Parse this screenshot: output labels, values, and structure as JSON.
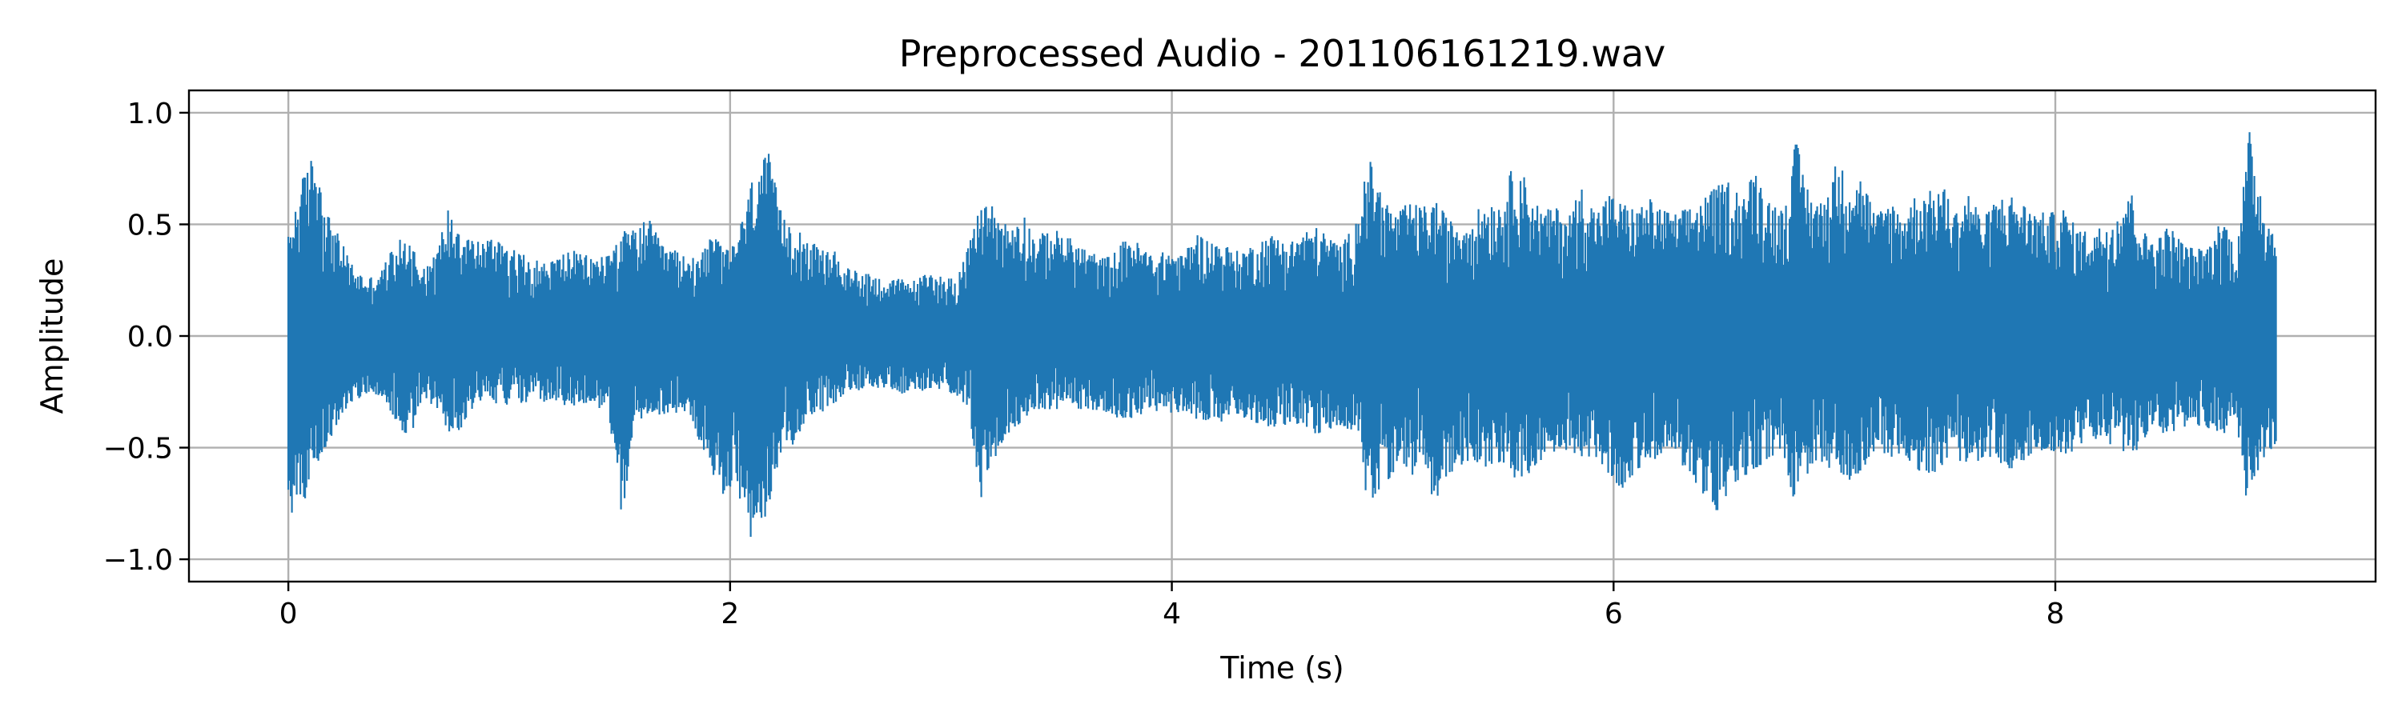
{
  "chart_data": {
    "type": "line",
    "title": "Preprocessed Audio - 201106161219.wav",
    "xlabel": "Time (s)",
    "ylabel": "Amplitude",
    "xlim": [
      -0.45,
      9.45
    ],
    "ylim": [
      -1.1,
      1.1
    ],
    "x_ticks": [
      0,
      2,
      4,
      6,
      8
    ],
    "x_tick_labels": [
      "0",
      "2",
      "4",
      "6",
      "8"
    ],
    "y_ticks": [
      1.0,
      0.5,
      0.0,
      -0.5,
      -1.0
    ],
    "y_tick_labels": [
      "1.0",
      "0.5",
      "0.0",
      "−0.5",
      "−1.0"
    ],
    "grid": true,
    "legend": "none",
    "series": [
      {
        "color": "#1f77b4",
        "x_start": 0,
        "x_end": 9.0,
        "envelope_upper": [
          0.45,
          0.7,
          0.84,
          0.55,
          0.42,
          0.3,
          0.26,
          0.3,
          0.42,
          0.45,
          0.32,
          0.36,
          0.58,
          0.5,
          0.43,
          0.44,
          0.46,
          0.38,
          0.36,
          0.33,
          0.35,
          0.39,
          0.37,
          0.35,
          0.38,
          0.47,
          0.48,
          0.53,
          0.41,
          0.39,
          0.34,
          0.41,
          0.45,
          0.38,
          0.52,
          0.76,
          0.82,
          0.54,
          0.52,
          0.43,
          0.39,
          0.38,
          0.3,
          0.3,
          0.27,
          0.25,
          0.26,
          0.25,
          0.29,
          0.27,
          0.26,
          0.4,
          0.62,
          0.58,
          0.49,
          0.57,
          0.44,
          0.48,
          0.47,
          0.42,
          0.39,
          0.35,
          0.38,
          0.46,
          0.4,
          0.36,
          0.39,
          0.36,
          0.47,
          0.43,
          0.42,
          0.38,
          0.4,
          0.44,
          0.46,
          0.42,
          0.47,
          0.49,
          0.45,
          0.41,
          0.52,
          0.8,
          0.64,
          0.55,
          0.6,
          0.58,
          0.61,
          0.52,
          0.51,
          0.56,
          0.61,
          0.6,
          0.82,
          0.66,
          0.56,
          0.58,
          0.55,
          0.68,
          0.56,
          0.64,
          0.6,
          0.57,
          0.62,
          0.57,
          0.55,
          0.58,
          0.62,
          0.67,
          0.7,
          0.64,
          0.75,
          0.62,
          0.57,
          0.88,
          0.65,
          0.6,
          0.78,
          0.72,
          0.72,
          0.54,
          0.62,
          0.55,
          0.64,
          0.65,
          0.68,
          0.56,
          0.66,
          0.52,
          0.62,
          0.64,
          0.6,
          0.56,
          0.55,
          0.58,
          0.49,
          0.47,
          0.5,
          0.54,
          0.68,
          0.47,
          0.44,
          0.5,
          0.42,
          0.39,
          0.41,
          0.55,
          0.38,
          0.92,
          0.62,
          0.44
        ],
        "envelope_lower": [
          -0.8,
          -0.78,
          -0.6,
          -0.48,
          -0.35,
          -0.3,
          -0.25,
          -0.28,
          -0.38,
          -0.48,
          -0.3,
          -0.32,
          -0.43,
          -0.42,
          -0.3,
          -0.28,
          -0.32,
          -0.3,
          -0.3,
          -0.3,
          -0.3,
          -0.33,
          -0.3,
          -0.32,
          -0.34,
          -0.82,
          -0.4,
          -0.36,
          -0.35,
          -0.35,
          -0.34,
          -0.5,
          -0.7,
          -0.72,
          -0.75,
          -1.0,
          -0.78,
          -0.52,
          -0.48,
          -0.36,
          -0.34,
          -0.3,
          -0.24,
          -0.25,
          -0.24,
          -0.23,
          -0.26,
          -0.24,
          -0.26,
          -0.24,
          -0.27,
          -0.32,
          -0.78,
          -0.55,
          -0.44,
          -0.38,
          -0.33,
          -0.33,
          -0.33,
          -0.33,
          -0.33,
          -0.34,
          -0.36,
          -0.4,
          -0.35,
          -0.34,
          -0.34,
          -0.36,
          -0.37,
          -0.38,
          -0.39,
          -0.38,
          -0.38,
          -0.4,
          -0.41,
          -0.4,
          -0.4,
          -0.45,
          -0.42,
          -0.42,
          -0.43,
          -0.78,
          -0.68,
          -0.6,
          -0.65,
          -0.55,
          -0.8,
          -0.62,
          -0.58,
          -0.56,
          -0.6,
          -0.56,
          -0.68,
          -0.62,
          -0.55,
          -0.55,
          -0.5,
          -0.6,
          -0.55,
          -0.62,
          -0.7,
          -0.6,
          -0.58,
          -0.55,
          -0.52,
          -0.64,
          -0.7,
          -0.84,
          -0.7,
          -0.65,
          -0.6,
          -0.55,
          -0.52,
          -0.78,
          -0.6,
          -0.58,
          -0.62,
          -0.65,
          -0.6,
          -0.5,
          -0.55,
          -0.52,
          -0.6,
          -0.62,
          -0.6,
          -0.56,
          -0.58,
          -0.55,
          -0.56,
          -0.6,
          -0.58,
          -0.52,
          -0.55,
          -0.56,
          -0.5,
          -0.46,
          -0.48,
          -0.5,
          -0.55,
          -0.48,
          -0.44,
          -0.46,
          -0.42,
          -0.4,
          -0.42,
          -0.44,
          -0.4,
          -0.85,
          -0.55,
          -0.5
        ]
      }
    ]
  }
}
